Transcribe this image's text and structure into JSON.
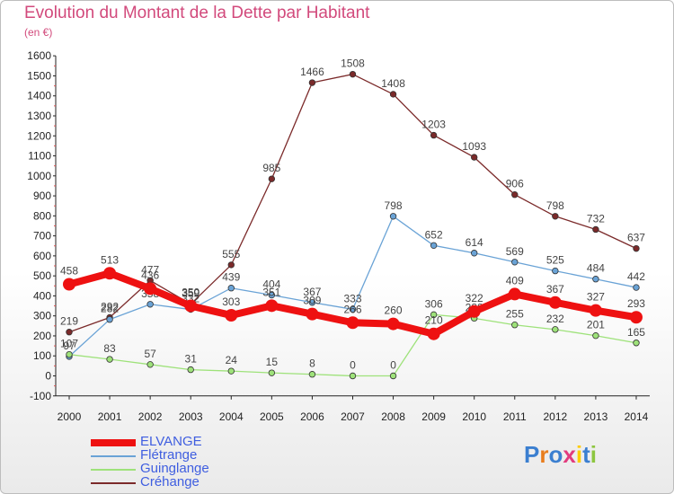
{
  "title": "Evolution du Montant de la Dette par Habitant",
  "subtitle": "(en €)",
  "logo": {
    "letters": [
      "P",
      "r",
      "o",
      "x",
      "i",
      "t",
      "i"
    ],
    "colors": [
      "#3b7fd0",
      "#e87d1d",
      "#3b7fd0",
      "#e23b7e",
      "#ffcc00",
      "#3b7fd0",
      "#8dc63f"
    ]
  },
  "chart_data": {
    "type": "line",
    "title": "Evolution du Montant de la Dette par Habitant",
    "ylabel": "(en €)",
    "xlabel": "",
    "x": [
      "2000",
      "2001",
      "2002",
      "2003",
      "2004",
      "2005",
      "2006",
      "2007",
      "2008",
      "2009",
      "2010",
      "2011",
      "2012",
      "2013",
      "2014"
    ],
    "y_ticks": [
      "-100",
      "0",
      "100",
      "200",
      "300",
      "400",
      "500",
      "600",
      "700",
      "800",
      "900",
      "1000",
      "1100",
      "1200",
      "1300",
      "1400",
      "1500",
      "1600"
    ],
    "ylim": [
      -100,
      1600
    ],
    "grid": false,
    "legend": "bottom-left",
    "series": [
      {
        "name": "ELVANGE",
        "color": "#ee1111",
        "values": [
          458,
          513,
          436,
          350,
          303,
          351,
          309,
          266,
          260,
          210,
          322,
          409,
          367,
          327,
          293
        ]
      },
      {
        "name": "Flétrange",
        "color": "#6aa3d6",
        "values": [
          97,
          282,
          358,
          332,
          439,
          404,
          367,
          333,
          798,
          652,
          614,
          569,
          525,
          484,
          442
        ]
      },
      {
        "name": "Guinglange",
        "color": "#9ee27a",
        "values": [
          107,
          83,
          57,
          31,
          24,
          15,
          8,
          0,
          0,
          306,
          288,
          255,
          232,
          201,
          165
        ]
      },
      {
        "name": "Créhange",
        "color": "#7b2a2a",
        "values": [
          219,
          292,
          477,
          359,
          555,
          985,
          1466,
          1508,
          1408,
          1203,
          1093,
          906,
          798,
          732,
          637
        ]
      }
    ]
  }
}
